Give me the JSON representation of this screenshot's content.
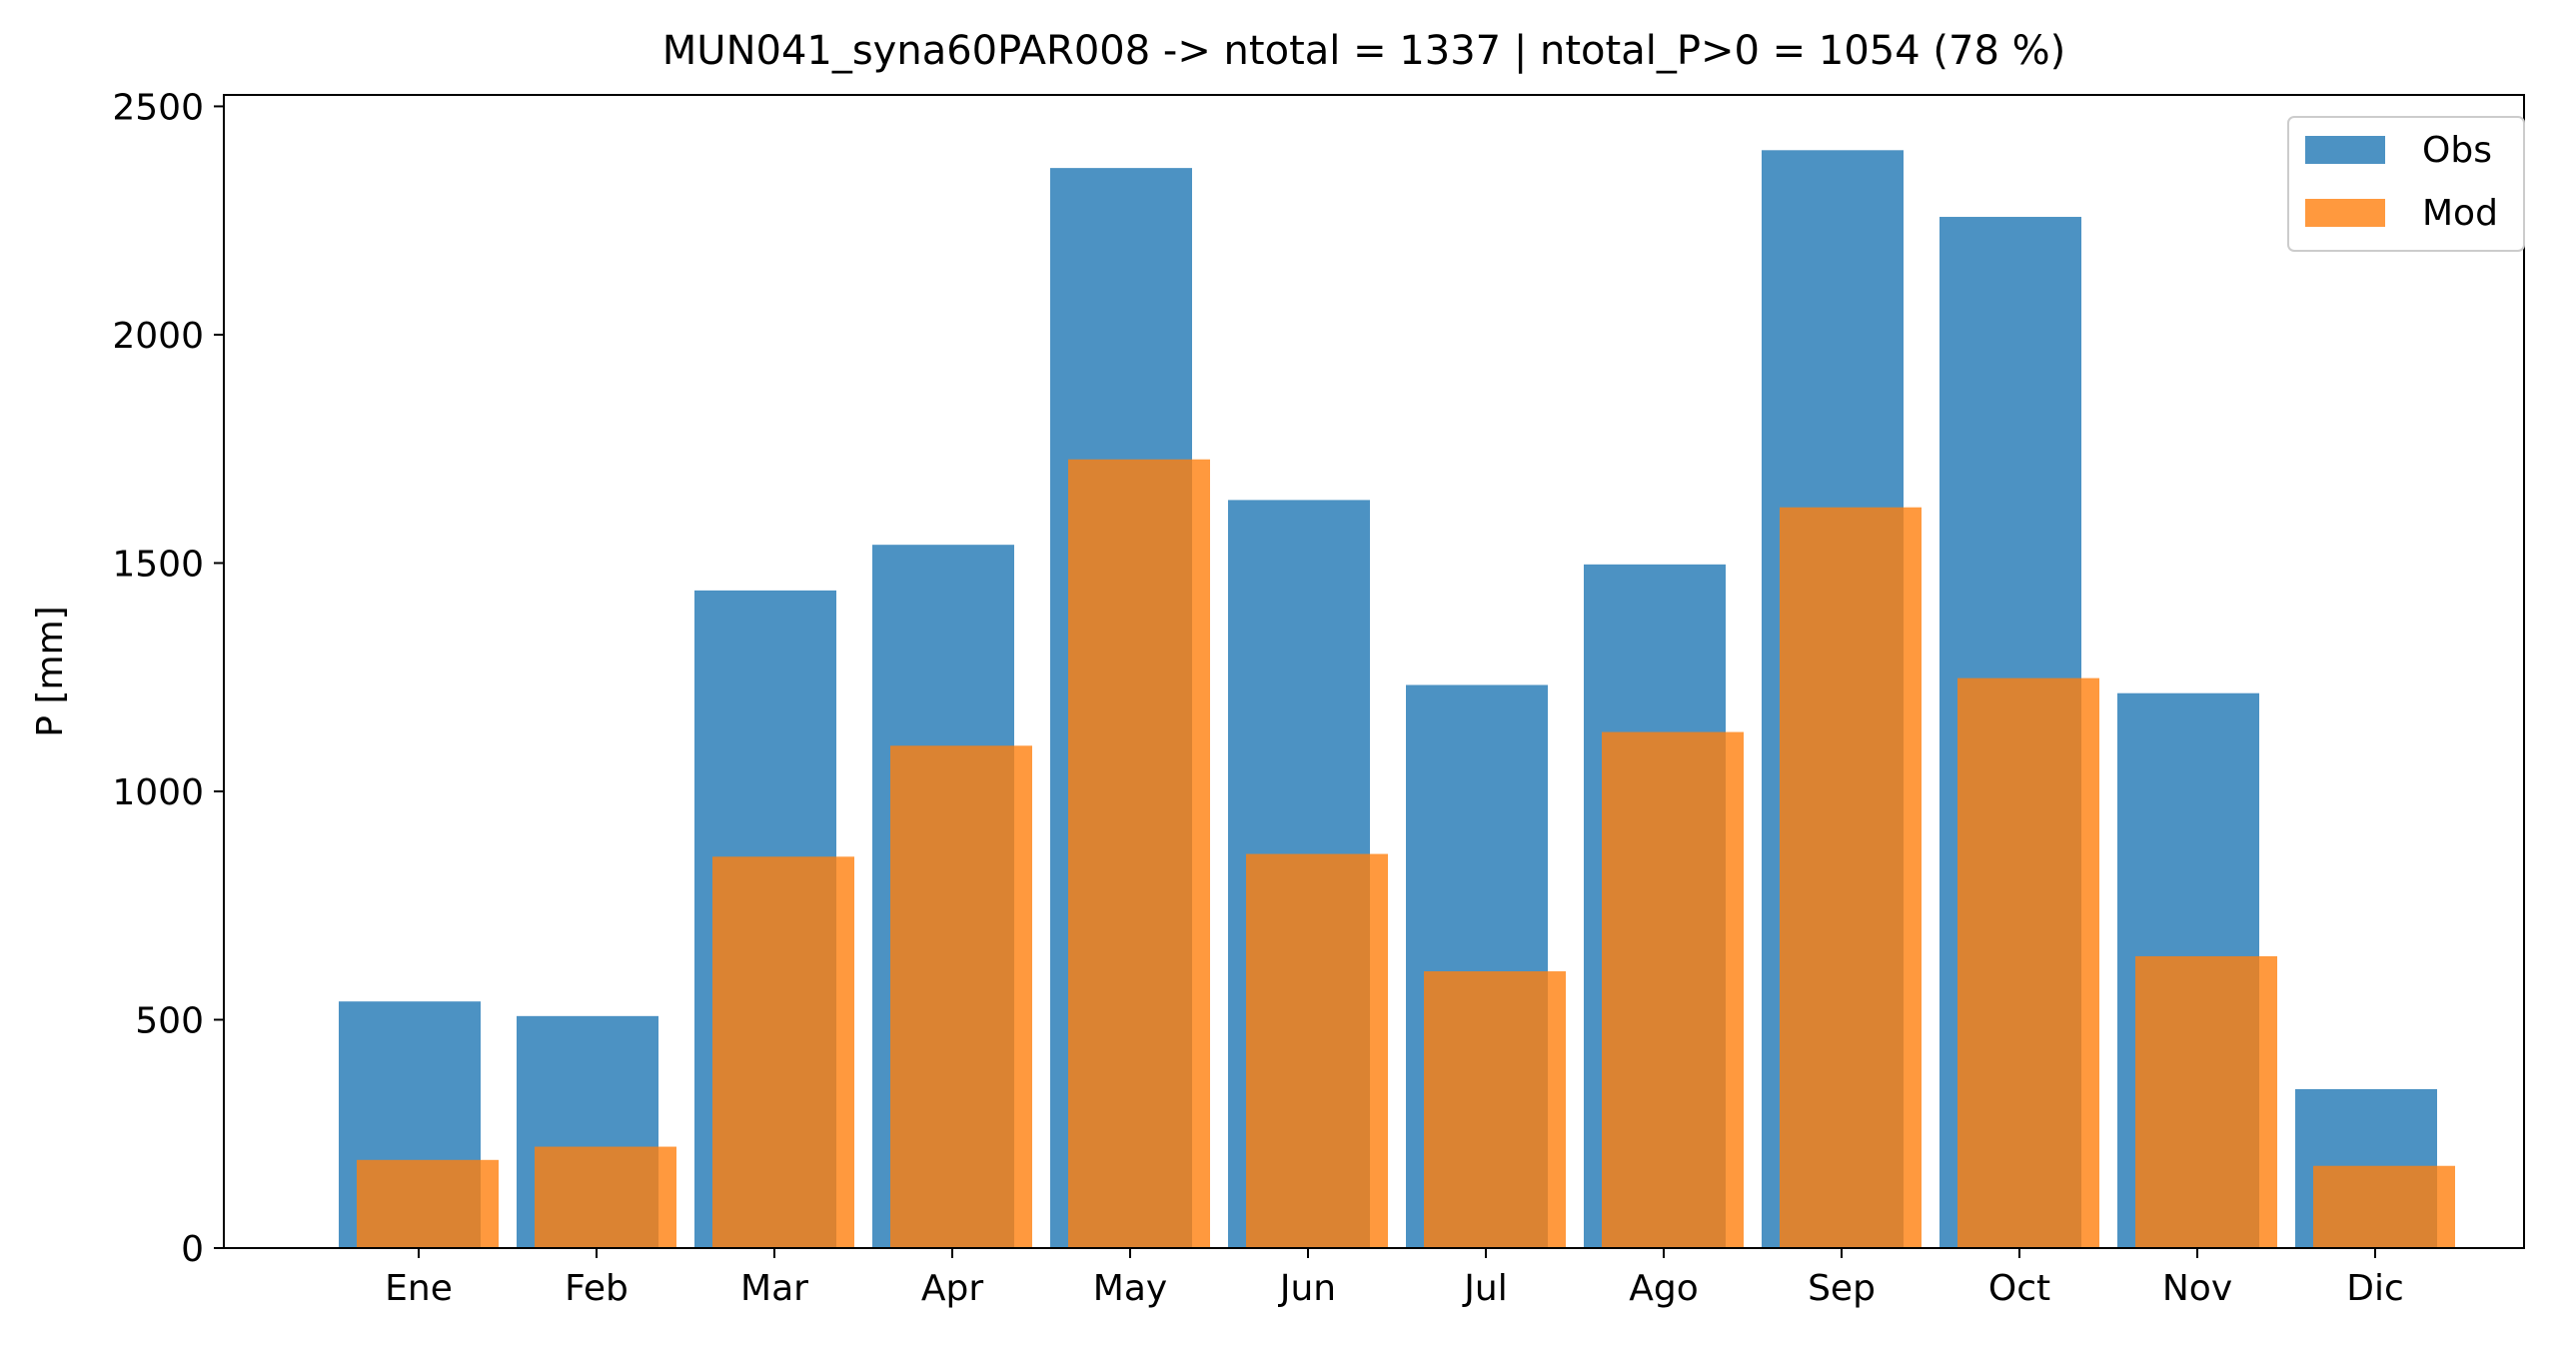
{
  "chart_data": {
    "type": "bar",
    "title": "MUN041_syna60PAR008 -> ntotal = 1337 | ntotal_P>0 = 1054 (78 %)",
    "xlabel": "",
    "ylabel": "P [mm]",
    "categories": [
      "Ene",
      "Feb",
      "Mar",
      "Apr",
      "May",
      "Jun",
      "Jul",
      "Ago",
      "Sep",
      "Oct",
      "Nov",
      "Dic"
    ],
    "series": [
      {
        "name": "Obs",
        "color": "#1f77b4",
        "values": [
          540,
          508,
          1440,
          1540,
          2365,
          1638,
          1233,
          1497,
          2404,
          2258,
          1215,
          348
        ]
      },
      {
        "name": "Mod",
        "color": "#ff7f0e",
        "values": [
          193,
          222,
          857,
          1100,
          1727,
          863,
          606,
          1130,
          1622,
          1248,
          639,
          180
        ]
      }
    ],
    "ylim": [
      0,
      2525
    ],
    "yticks": [
      0,
      500,
      1000,
      1500,
      2000,
      2500
    ],
    "legend_position": "top-right",
    "grid": false
  }
}
